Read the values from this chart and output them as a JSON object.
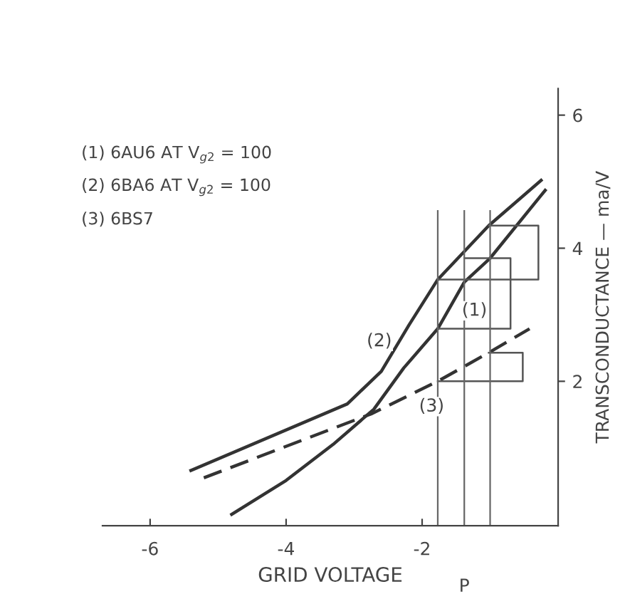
{
  "chart_data": {
    "type": "line",
    "xlabel": "GRID VOLTAGE",
    "ylabel": "TRANSCONDUCTANCE — ma/V",
    "xlim": [
      -6.7,
      0
    ],
    "ylim": [
      -0.17,
      6.4
    ],
    "xticks": [
      -6,
      -4,
      -2
    ],
    "yticks": [
      2,
      4,
      6
    ],
    "grid": false,
    "legend": false,
    "series": [
      {
        "color": "#333333",
        "line_style": "solid",
        "x": [
          -4.8,
          -4.0,
          -3.31,
          -2.71,
          -2.27,
          -1.77,
          -1.38,
          -1.0,
          -0.19
        ],
        "values": [
          0.0,
          0.51,
          1.05,
          1.58,
          2.2,
          2.79,
          3.49,
          3.85,
          4.87
        ]
      },
      {
        "color": "#333333",
        "line_style": "solid",
        "x": [
          -5.4,
          -3.1,
          -2.6,
          -2.19,
          -1.77,
          -1.02,
          -0.25
        ],
        "values": [
          0.66,
          1.66,
          2.15,
          2.85,
          3.53,
          4.34,
          5.02
        ]
      },
      {
        "color": "#333333",
        "line_style": "dashed",
        "x": [
          -5.21,
          -2.75,
          -1.77,
          -1.02,
          -0.42
        ],
        "values": [
          0.55,
          1.51,
          2.0,
          2.43,
          2.79
        ]
      },
      {
        "color": "#555555",
        "line_style": "solid",
        "x": [
          -1.77,
          -0.29,
          -0.29,
          -1.02
        ],
        "values": [
          3.53,
          3.53,
          4.34,
          4.34
        ]
      },
      {
        "color": "#555555",
        "line_style": "solid",
        "x": [
          -1.77,
          -0.7,
          -0.7,
          -1.38
        ],
        "values": [
          2.79,
          2.79,
          3.85,
          3.85
        ]
      },
      {
        "color": "#555555",
        "line_style": "solid",
        "x": [
          -1.77,
          -0.52,
          -0.52,
          -1.02
        ],
        "values": [
          2.0,
          2.0,
          2.43,
          2.43
        ]
      }
    ],
    "ref_lines": [
      {
        "axis": "x",
        "value": -1.77,
        "color": "#666666"
      },
      {
        "axis": "x",
        "value": -1.38,
        "label": "P",
        "color": "#666666"
      },
      {
        "axis": "x",
        "value": -1.0,
        "color": "#666666"
      }
    ],
    "annotations": [
      "(1) 6AU6 AT V$_{g2}$ = 100",
      "(2) 6BA6 AT V$_{g2}$ = 100",
      "(3) 6BS7",
      {
        "text": "(1)",
        "x": -1.23,
        "y": 3.06
      },
      {
        "text": "(2)",
        "x": -2.63,
        "y": 2.6
      },
      {
        "text": "(3)",
        "x": -1.86,
        "y": 1.62
      }
    ]
  }
}
